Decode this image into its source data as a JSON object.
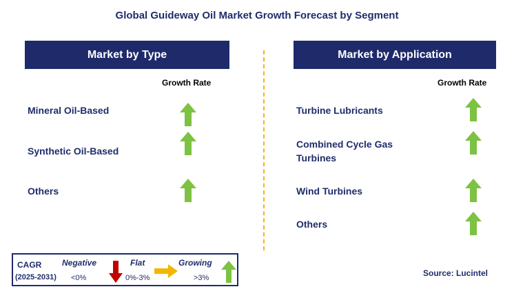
{
  "title": "Global Guideway Oil Market Growth Forecast by Segment",
  "left_panel": {
    "header": "Market by Type",
    "column_label": "Growth Rate",
    "items": [
      {
        "label": "Mineral Oil-Based",
        "trend": "growing"
      },
      {
        "label": "Synthetic Oil-Based",
        "trend": "growing"
      },
      {
        "label": "Others",
        "trend": "growing"
      }
    ]
  },
  "right_panel": {
    "header": "Market by Application",
    "column_label": "Growth Rate",
    "items": [
      {
        "label": "Turbine Lubricants",
        "trend": "growing"
      },
      {
        "label": "Combined Cycle Gas Turbines",
        "trend": "growing"
      },
      {
        "label": "Wind Turbines",
        "trend": "growing"
      },
      {
        "label": "Others",
        "trend": "growing"
      }
    ]
  },
  "legend": {
    "cagr_label": "CAGR",
    "period": "(2025-2031)",
    "negative_label": "Negative",
    "negative_range": "<0%",
    "flat_label": "Flat",
    "flat_range": "0%-3%",
    "growing_label": "Growing",
    "growing_range": ">3%"
  },
  "source": "Source: Lucintel",
  "colors": {
    "header_bg": "#1f2a6b",
    "growing_arrow": "#7dc242",
    "negative_arrow": "#c00000",
    "flat_arrow": "#f2b705",
    "divider": "#f2b705"
  }
}
